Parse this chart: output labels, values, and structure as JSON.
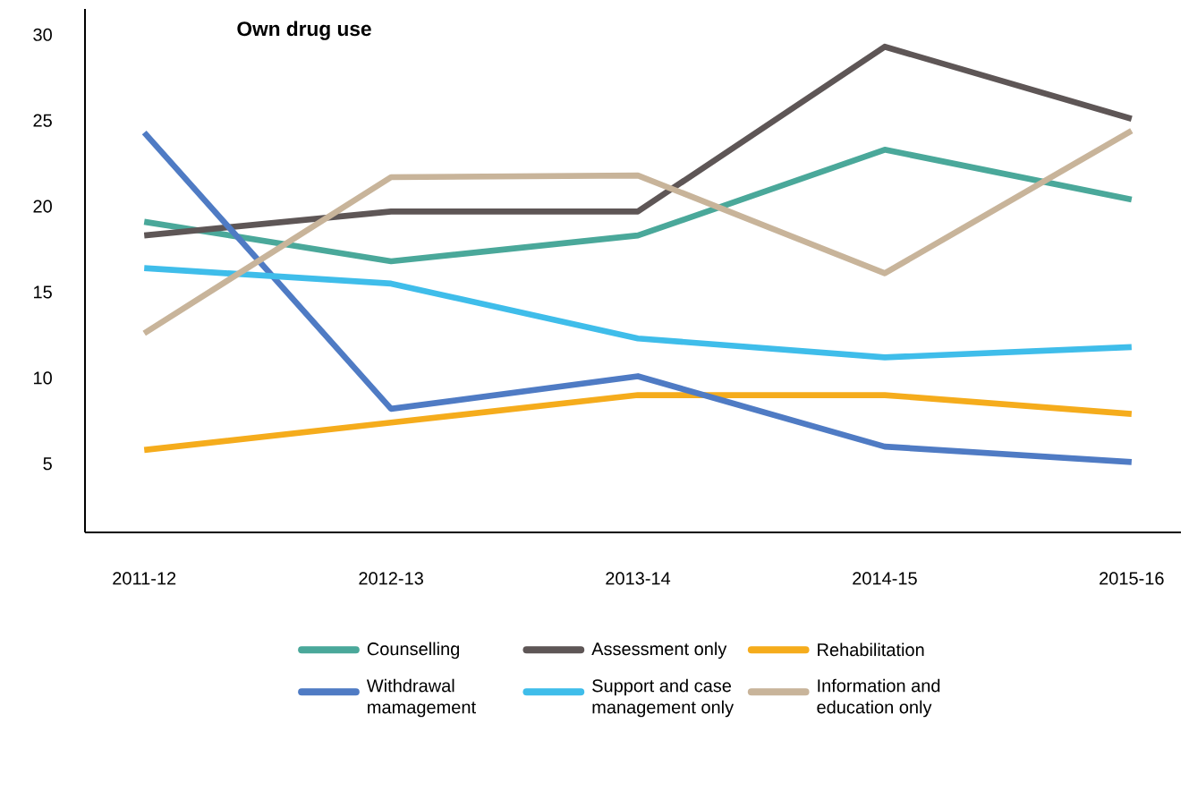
{
  "chart_data": {
    "type": "line",
    "title": "Own drug use",
    "categories": [
      "2011-12",
      "2012-13",
      "2013-14",
      "2014-15",
      "2015-16"
    ],
    "ylim": [
      1,
      31.5
    ],
    "yticks": [
      5,
      10,
      15,
      20,
      25,
      30
    ],
    "legend": "bottom",
    "grid": false,
    "marker": "none",
    "line_style": "solid",
    "series": [
      {
        "name": "Counselling",
        "color": "#4aa89a",
        "values": [
          19.1,
          16.8,
          18.3,
          23.3,
          20.4
        ]
      },
      {
        "name": "Assessment only",
        "color": "#5e5656",
        "values": [
          18.3,
          19.7,
          19.7,
          29.3,
          25.1
        ]
      },
      {
        "name": "Rehabilitation",
        "color": "#f5ac1c",
        "values": [
          5.8,
          7.4,
          9.0,
          9.0,
          7.9
        ]
      },
      {
        "name": "Withdrawal mamagement",
        "color": "#4f7bc4",
        "values": [
          24.3,
          8.2,
          10.1,
          6.0,
          5.1
        ]
      },
      {
        "name": "Support and case management only",
        "color": "#3fbdea",
        "values": [
          16.4,
          15.5,
          12.3,
          11.2,
          11.8
        ]
      },
      {
        "name": "Information and education only",
        "color": "#c8b49a",
        "values": [
          12.6,
          21.7,
          21.8,
          16.1,
          24.4
        ]
      }
    ]
  }
}
